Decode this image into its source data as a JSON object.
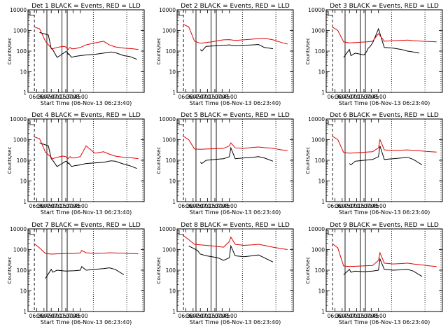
{
  "colors": {
    "events": "#000000",
    "lld": "#e00000",
    "axes": "#000000",
    "background": "#ffffff"
  },
  "chart_data": [
    {
      "type": "line",
      "title": "Det 1 BLACK = Events, RED = LLD",
      "xlabel": "Start Time (06-Nov-13 06:23:40)",
      "ylabel": "Counts/sec",
      "yscale": "log",
      "ylim": [
        1,
        10000
      ],
      "x_tick_labels": [
        "06:30",
        "06:45",
        "07:00",
        "07:15",
        "07:30",
        "07:45",
        "08:00"
      ],
      "y_tick_labels": [
        "1",
        "10",
        "100",
        "1000",
        "10000"
      ],
      "series": [
        {
          "name": "Events",
          "color": "#000000",
          "x": [
            6.6,
            6.9,
            7.0,
            7.05,
            7.2,
            7.3,
            7.5,
            7.55,
            7.58,
            7.6,
            7.62,
            7.65,
            7.7,
            7.8,
            8.0,
            8.2,
            8.5,
            8.8,
            9.05,
            9.2,
            9.5,
            9.7,
            9.95
          ],
          "y": [
            800,
            600,
            130,
            120,
            50,
            60,
            95,
            90,
            70,
            75,
            70,
            60,
            50,
            55,
            60,
            65,
            70,
            80,
            90,
            85,
            60,
            55,
            40
          ]
        },
        {
          "name": "LLD",
          "color": "#e00000",
          "x": [
            6.4,
            6.6,
            6.8,
            7.0,
            7.05,
            7.2,
            7.4,
            7.5,
            7.55,
            7.58,
            7.6,
            7.62,
            7.65,
            7.7,
            7.8,
            8.0,
            8.2,
            8.5,
            8.8,
            9.0,
            9.2,
            9.5,
            9.8,
            10.0
          ],
          "y": [
            1500,
            1200,
            300,
            140,
            130,
            150,
            170,
            160,
            130,
            120,
            130,
            140,
            150,
            130,
            130,
            150,
            200,
            250,
            300,
            200,
            160,
            140,
            130,
            120
          ]
        }
      ]
    },
    {
      "type": "line",
      "title": "Det 2 BLACK = Events, RED = LLD",
      "xlabel": "Start Time (06-Nov-13 06:23:40)",
      "ylabel": "Counts/sec",
      "yscale": "log",
      "ylim": [
        1,
        10000
      ],
      "x_tick_labels": [
        "06:30",
        "06:45",
        "07:00",
        "07:15",
        "07:30",
        "07:45",
        "08:00"
      ],
      "y_tick_labels": [
        "1",
        "10",
        "100",
        "1000",
        "10000"
      ],
      "series": [
        {
          "name": "Events",
          "color": "#000000",
          "x": [
            7.0,
            7.05,
            7.2,
            7.5,
            7.8,
            8.0,
            8.2,
            8.5,
            8.8,
            9.0,
            9.2,
            9.5
          ],
          "y": [
            120,
            100,
            170,
            180,
            190,
            200,
            180,
            190,
            200,
            210,
            150,
            130
          ]
        },
        {
          "name": "LLD",
          "color": "#e00000",
          "x": [
            6.4,
            6.6,
            6.8,
            7.0,
            7.2,
            7.4,
            7.6,
            7.8,
            8.0,
            8.2,
            8.5,
            8.8,
            9.0,
            9.2,
            9.5,
            9.8,
            10.0
          ],
          "y": [
            2000,
            1500,
            300,
            240,
            260,
            280,
            320,
            350,
            360,
            330,
            350,
            380,
            400,
            420,
            350,
            260,
            220
          ]
        }
      ]
    },
    {
      "type": "line",
      "title": "Det 3 BLACK = Events, RED = LLD",
      "xlabel": "Start Time (06-Nov-13 06:23:40)",
      "ylabel": "Counts/sec",
      "yscale": "log",
      "ylim": [
        1,
        10000
      ],
      "x_tick_labels": [
        "06:30",
        "06:45",
        "07:00",
        "07:15",
        "07:30",
        "07:45",
        "08:00"
      ],
      "y_tick_labels": [
        "1",
        "10",
        "100",
        "1000",
        "10000"
      ],
      "series": [
        {
          "name": "Events",
          "color": "#000000",
          "x": [
            6.8,
            7.0,
            7.05,
            7.2,
            7.4,
            7.5,
            7.55,
            7.58,
            7.6,
            7.62,
            7.65,
            7.7,
            7.8,
            8.0,
            8.2,
            8.5,
            8.8,
            9.0,
            9.2,
            9.4
          ],
          "y": [
            50,
            120,
            60,
            80,
            70,
            65,
            80,
            90,
            100,
            120,
            140,
            160,
            250,
            1200,
            150,
            140,
            120,
            100,
            90,
            80
          ]
        },
        {
          "name": "LLD",
          "color": "#e00000",
          "x": [
            6.4,
            6.6,
            6.8,
            7.0,
            7.2,
            7.4,
            7.6,
            7.8,
            8.0,
            8.2,
            8.5,
            8.8,
            9.0,
            9.2,
            9.5,
            9.8,
            10.0
          ],
          "y": [
            1500,
            1000,
            280,
            250,
            260,
            270,
            280,
            300,
            700,
            300,
            320,
            330,
            340,
            320,
            300,
            290,
            280
          ]
        }
      ]
    },
    {
      "type": "line",
      "title": "Det 4 BLACK = Events, RED = LLD",
      "xlabel": "Start Time (06-Nov-13 06:23:40)",
      "ylabel": "Counts/sec",
      "yscale": "log",
      "ylim": [
        1,
        10000
      ],
      "x_tick_labels": [
        "06:30",
        "06:45",
        "07:00",
        "07:15",
        "07:30",
        "07:45",
        "08:00"
      ],
      "y_tick_labels": [
        "1",
        "10",
        "100",
        "1000",
        "10000"
      ],
      "series": [
        {
          "name": "Events",
          "color": "#000000",
          "x": [
            6.6,
            6.9,
            7.0,
            7.05,
            7.2,
            7.3,
            7.5,
            7.55,
            7.58,
            7.6,
            7.62,
            7.65,
            7.7,
            7.8,
            8.0,
            8.2,
            8.5,
            8.8,
            9.05,
            9.2,
            9.5,
            9.7,
            9.95
          ],
          "y": [
            700,
            500,
            120,
            100,
            50,
            60,
            90,
            85,
            70,
            75,
            70,
            60,
            50,
            55,
            60,
            70,
            75,
            80,
            95,
            90,
            65,
            55,
            40
          ]
        },
        {
          "name": "LLD",
          "color": "#e00000",
          "x": [
            6.4,
            6.6,
            6.8,
            7.0,
            7.05,
            7.2,
            7.4,
            7.5,
            7.55,
            7.58,
            7.6,
            7.62,
            7.65,
            7.7,
            7.8,
            8.0,
            8.2,
            8.5,
            8.8,
            9.0,
            9.2,
            9.5,
            9.8,
            10.0
          ],
          "y": [
            1400,
            1100,
            250,
            140,
            120,
            140,
            160,
            150,
            130,
            120,
            130,
            140,
            150,
            130,
            130,
            150,
            500,
            220,
            260,
            200,
            160,
            140,
            130,
            120
          ]
        }
      ]
    },
    {
      "type": "line",
      "title": "Det 5 BLACK = Events, RED = LLD",
      "xlabel": "Start Time (06-Nov-13 06:23:40)",
      "ylabel": "Counts/sec",
      "yscale": "log",
      "ylim": [
        1,
        10000
      ],
      "x_tick_labels": [
        "06:30",
        "06:45",
        "07:00",
        "07:15",
        "07:30",
        "07:45",
        "08:00"
      ],
      "y_tick_labels": [
        "1",
        "10",
        "100",
        "1000",
        "10000"
      ],
      "series": [
        {
          "name": "Events",
          "color": "#000000",
          "x": [
            7.0,
            7.05,
            7.2,
            7.5,
            7.8,
            8.0,
            8.05,
            8.2,
            8.5,
            8.8,
            9.0,
            9.2,
            9.5
          ],
          "y": [
            80,
            70,
            100,
            110,
            120,
            150,
            400,
            120,
            130,
            140,
            150,
            130,
            90
          ]
        },
        {
          "name": "LLD",
          "color": "#e00000",
          "x": [
            6.4,
            6.6,
            6.8,
            7.0,
            7.2,
            7.4,
            7.6,
            7.8,
            8.0,
            8.05,
            8.2,
            8.5,
            8.8,
            9.0,
            9.2,
            9.5,
            9.8,
            10.0
          ],
          "y": [
            1500,
            1000,
            350,
            340,
            350,
            360,
            370,
            380,
            500,
            700,
            400,
            380,
            420,
            440,
            410,
            380,
            320,
            300
          ]
        }
      ]
    },
    {
      "type": "line",
      "title": "Det 6 BLACK = Events, RED = LLD",
      "xlabel": "Start Time (06-Nov-13 06:23:40)",
      "ylabel": "Counts/sec",
      "yscale": "log",
      "ylim": [
        1,
        10000
      ],
      "x_tick_labels": [
        "06:30",
        "06:45",
        "07:00",
        "07:15",
        "07:30",
        "07:45",
        "08:00"
      ],
      "y_tick_labels": [
        "1",
        "10",
        "100",
        "1000",
        "10000"
      ],
      "series": [
        {
          "name": "Events",
          "color": "#000000",
          "x": [
            7.0,
            7.05,
            7.2,
            7.5,
            7.8,
            8.0,
            8.05,
            8.2,
            8.5,
            8.8,
            9.0,
            9.2,
            9.5
          ],
          "y": [
            70,
            60,
            90,
            100,
            110,
            150,
            500,
            110,
            120,
            130,
            140,
            110,
            60
          ]
        },
        {
          "name": "LLD",
          "color": "#e00000",
          "x": [
            6.4,
            6.6,
            6.8,
            7.0,
            7.2,
            7.4,
            7.6,
            7.8,
            8.0,
            8.05,
            8.2,
            8.5,
            8.8,
            9.0,
            9.2,
            9.5,
            9.8,
            10.0
          ],
          "y": [
            1500,
            1000,
            240,
            220,
            230,
            240,
            250,
            260,
            400,
            1000,
            320,
            300,
            310,
            320,
            300,
            280,
            260,
            250
          ]
        }
      ]
    },
    {
      "type": "line",
      "title": "Det 7 BLACK = Events, RED = LLD",
      "xlabel": "Start Time (06-Nov-13 06:23:40)",
      "ylabel": "Counts/sec",
      "yscale": "log",
      "ylim": [
        1,
        10000
      ],
      "x_tick_labels": [
        "06:30",
        "06:45",
        "07:00",
        "07:15",
        "07:30",
        "07:45",
        "08:00"
      ],
      "y_tick_labels": [
        "1",
        "10",
        "100",
        "1000",
        "10000"
      ],
      "series": [
        {
          "name": "Events",
          "color": "#000000",
          "x": [
            6.8,
            7.0,
            7.05,
            7.2,
            7.5,
            7.8,
            8.0,
            8.05,
            8.2,
            8.5,
            8.8,
            9.0,
            9.2,
            9.5
          ],
          "y": [
            40,
            110,
            80,
            100,
            90,
            95,
            100,
            150,
            100,
            110,
            120,
            130,
            110,
            60
          ]
        },
        {
          "name": "LLD",
          "color": "#e00000",
          "x": [
            6.4,
            6.6,
            6.8,
            7.0,
            7.2,
            7.4,
            7.6,
            7.8,
            8.0,
            8.05,
            8.2,
            8.5,
            8.8,
            9.0,
            9.2,
            9.5,
            9.8,
            10.0
          ],
          "y": [
            2000,
            1200,
            650,
            600,
            620,
            630,
            640,
            650,
            680,
            900,
            700,
            650,
            660,
            700,
            680,
            660,
            640,
            620
          ]
        }
      ]
    },
    {
      "type": "line",
      "title": "Det 8 BLACK = Events, RED = LLD",
      "xlabel": "Start Time (06-Nov-13 06:23:40)",
      "ylabel": "Counts/sec",
      "yscale": "log",
      "ylim": [
        1,
        10000
      ],
      "x_tick_labels": [
        "06:30",
        "06:45",
        "07:00",
        "07:15",
        "07:30",
        "07:45",
        "08:00"
      ],
      "y_tick_labels": [
        "1",
        "10",
        "100",
        "1000",
        "10000"
      ],
      "series": [
        {
          "name": "Events",
          "color": "#000000",
          "x": [
            6.6,
            6.9,
            7.0,
            7.2,
            7.4,
            7.6,
            7.8,
            8.0,
            8.05,
            8.2,
            8.5,
            8.8,
            9.0,
            9.2,
            9.5
          ],
          "y": [
            1500,
            900,
            600,
            500,
            450,
            400,
            300,
            400,
            1500,
            500,
            450,
            500,
            550,
            400,
            250
          ]
        },
        {
          "name": "LLD",
          "color": "#e00000",
          "x": [
            6.4,
            6.6,
            6.8,
            7.0,
            7.2,
            7.4,
            7.6,
            7.8,
            8.0,
            8.05,
            8.2,
            8.5,
            8.8,
            9.0,
            9.2,
            9.5,
            9.8,
            10.0
          ],
          "y": [
            5000,
            3000,
            1800,
            1700,
            1600,
            1500,
            1400,
            1300,
            2500,
            4000,
            1800,
            1600,
            1700,
            1800,
            1600,
            1300,
            1100,
            1000
          ]
        }
      ]
    },
    {
      "type": "line",
      "title": "Det 9 BLACK = Events, RED = LLD",
      "xlabel": "Start Time (06-Nov-13 06:23:40)",
      "ylabel": "Counts/sec",
      "yscale": "log",
      "ylim": [
        1,
        10000
      ],
      "x_tick_labels": [
        "06:30",
        "06:45",
        "07:00",
        "07:15",
        "07:30",
        "07:45",
        "08:00"
      ],
      "y_tick_labels": [
        "1",
        "10",
        "100",
        "1000",
        "10000"
      ],
      "series": [
        {
          "name": "Events",
          "color": "#000000",
          "x": [
            6.8,
            7.0,
            7.05,
            7.2,
            7.5,
            7.8,
            8.0,
            8.05,
            8.2,
            8.5,
            8.8,
            9.0,
            9.2,
            9.5
          ],
          "y": [
            60,
            110,
            80,
            90,
            85,
            90,
            100,
            350,
            110,
            100,
            105,
            110,
            90,
            50
          ]
        },
        {
          "name": "LLD",
          "color": "#e00000",
          "x": [
            6.4,
            6.6,
            6.8,
            7.0,
            7.2,
            7.4,
            7.6,
            7.8,
            8.0,
            8.05,
            8.2,
            8.5,
            8.8,
            9.0,
            9.2,
            9.5,
            9.8,
            10.0
          ],
          "y": [
            2000,
            1200,
            160,
            150,
            155,
            160,
            165,
            170,
            300,
            700,
            220,
            200,
            210,
            220,
            200,
            180,
            160,
            150
          ]
        }
      ]
    }
  ]
}
